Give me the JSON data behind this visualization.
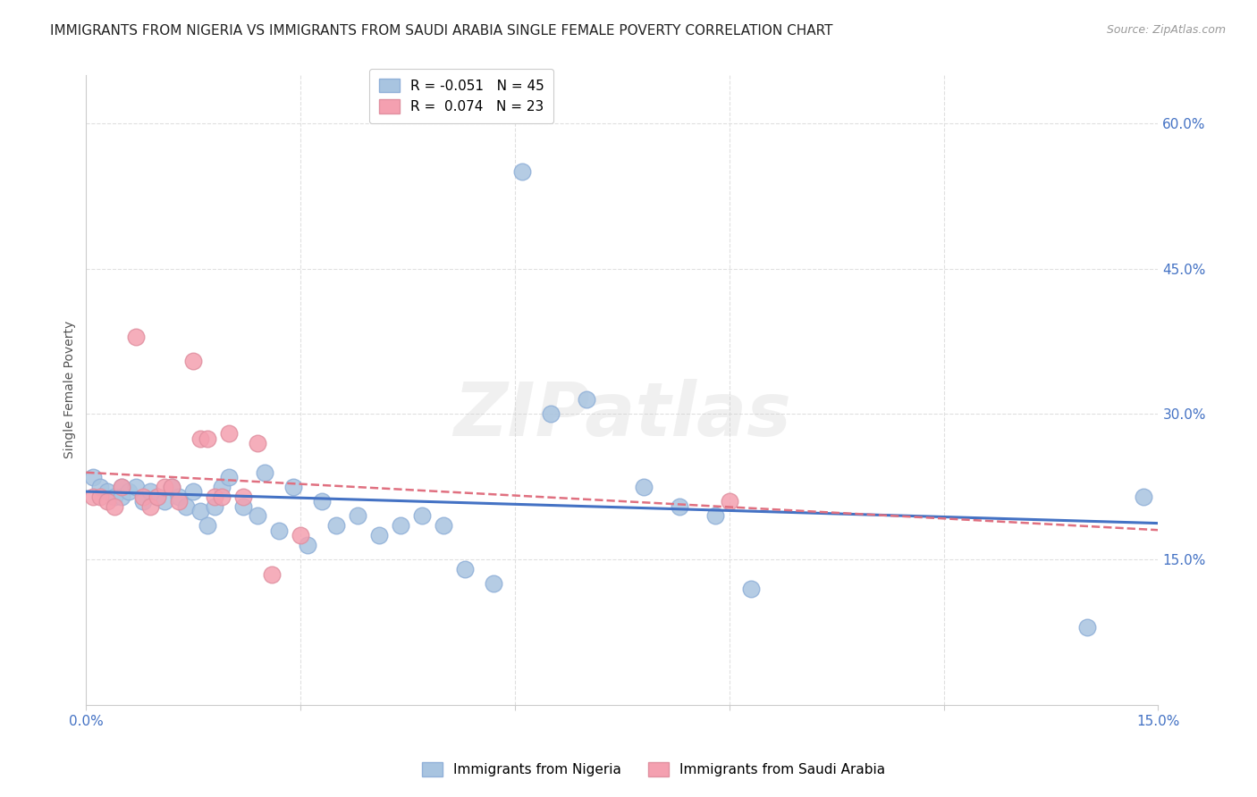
{
  "title": "IMMIGRANTS FROM NIGERIA VS IMMIGRANTS FROM SAUDI ARABIA SINGLE FEMALE POVERTY CORRELATION CHART",
  "source": "Source: ZipAtlas.com",
  "ylabel": "Single Female Poverty",
  "watermark": "ZIPatlas",
  "xlim": [
    0.0,
    0.15
  ],
  "ylim": [
    0.0,
    0.65
  ],
  "y_ticks_right": [
    0.15,
    0.3,
    0.45,
    0.6
  ],
  "y_tick_labels_right": [
    "15.0%",
    "30.0%",
    "45.0%",
    "60.0%"
  ],
  "nigeria_color": "#a8c4e0",
  "saudi_color": "#f4a0b0",
  "nigeria_line_color": "#4472c4",
  "saudi_line_color": "#e07080",
  "nigeria_R": -0.051,
  "nigeria_N": 45,
  "saudi_R": 0.074,
  "saudi_N": 23,
  "nigeria_label": "Immigrants from Nigeria",
  "saudi_label": "Immigrants from Saudi Arabia",
  "nigeria_x": [
    0.001,
    0.002,
    0.003,
    0.004,
    0.005,
    0.005,
    0.006,
    0.007,
    0.008,
    0.009,
    0.01,
    0.011,
    0.012,
    0.013,
    0.014,
    0.015,
    0.016,
    0.017,
    0.018,
    0.019,
    0.02,
    0.022,
    0.024,
    0.025,
    0.027,
    0.029,
    0.031,
    0.033,
    0.035,
    0.038,
    0.041,
    0.044,
    0.047,
    0.05,
    0.053,
    0.057,
    0.061,
    0.065,
    0.07,
    0.078,
    0.083,
    0.088,
    0.093,
    0.14,
    0.148
  ],
  "nigeria_y": [
    0.235,
    0.225,
    0.22,
    0.215,
    0.225,
    0.215,
    0.22,
    0.225,
    0.21,
    0.22,
    0.215,
    0.21,
    0.225,
    0.215,
    0.205,
    0.22,
    0.2,
    0.185,
    0.205,
    0.225,
    0.235,
    0.205,
    0.195,
    0.24,
    0.18,
    0.225,
    0.165,
    0.21,
    0.185,
    0.195,
    0.175,
    0.185,
    0.195,
    0.185,
    0.14,
    0.125,
    0.55,
    0.3,
    0.315,
    0.225,
    0.205,
    0.195,
    0.12,
    0.08,
    0.215
  ],
  "saudi_x": [
    0.001,
    0.002,
    0.003,
    0.004,
    0.005,
    0.007,
    0.008,
    0.009,
    0.01,
    0.011,
    0.012,
    0.013,
    0.015,
    0.016,
    0.017,
    0.018,
    0.019,
    0.02,
    0.022,
    0.024,
    0.026,
    0.03,
    0.09
  ],
  "saudi_y": [
    0.215,
    0.215,
    0.21,
    0.205,
    0.225,
    0.38,
    0.215,
    0.205,
    0.215,
    0.225,
    0.225,
    0.21,
    0.355,
    0.275,
    0.275,
    0.215,
    0.215,
    0.28,
    0.215,
    0.27,
    0.135,
    0.175,
    0.21
  ],
  "grid_color": "#e0e0e0",
  "bg_color": "#ffffff",
  "title_fontsize": 11,
  "tick_label_color": "#4472c4",
  "tick_label_fontsize": 11
}
